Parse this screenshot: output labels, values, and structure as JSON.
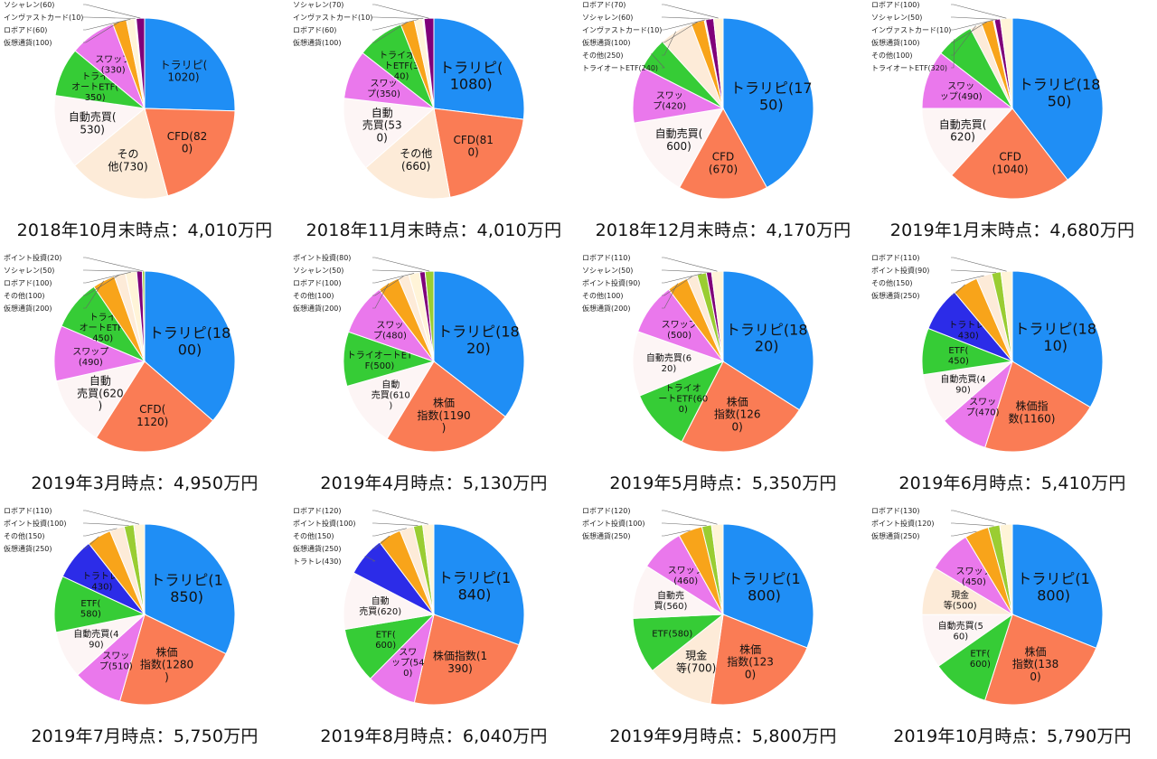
{
  "palette": {
    "トラリピ": "#1f8ef5",
    "CFD": "#fa7c55",
    "株価指数": "#fa7c55",
    "その他": "#fdebd8",
    "現金等": "#fdebd8",
    "自動売買": "#fdf5f5",
    "トライオートETF": "#36cc36",
    "ETF": "#36cc36",
    "スワップ": "#ea78ec",
    "トラトレ": "#2c2ce8",
    "仮想通貨": "#f8a41a",
    "ロボアド": "#fff4d8",
    "インヴァストカード": "#fdf8ee",
    "ソシャレン": "#80007a",
    "ポイント投資": "#9acd32"
  },
  "chart_data": [
    {
      "type": "pie",
      "title": "2018年10月末時点：4,010万円",
      "slices": [
        {
          "name": "トラリピ",
          "value": 1020,
          "label": "トラリピ(\n1020)",
          "kind": "inside"
        },
        {
          "name": "CFD",
          "value": 820,
          "label": "CFD(82\n0)",
          "kind": "inside"
        },
        {
          "name": "その他",
          "value": 730,
          "label": "その\n他(730)",
          "kind": "inside"
        },
        {
          "name": "自動売買",
          "value": 530,
          "label": "自動売買(\n530)",
          "kind": "inside"
        },
        {
          "name": "トライオートETF",
          "value": 350,
          "label": "トライ\nオートETF(\n350)",
          "kind": "inside"
        },
        {
          "name": "スワップ",
          "value": 330,
          "label": "スワップ\n(330)",
          "kind": "inside"
        },
        {
          "name": "仮想通貨",
          "value": 100,
          "label": "仮想通貨(100)",
          "kind": "outside"
        },
        {
          "name": "ロボアド",
          "value": 60,
          "label": "ロボアド(60)",
          "kind": "outside"
        },
        {
          "name": "インヴァストカード",
          "value": 10,
          "label": "インヴァストカード(10)",
          "kind": "outside"
        },
        {
          "name": "ソシャレン",
          "value": 60,
          "label": "ソシャレン(60)",
          "kind": "outside"
        }
      ]
    },
    {
      "type": "pie",
      "title": "2018年11月末時点：4,010万円",
      "slices": [
        {
          "name": "トラリピ",
          "value": 1080,
          "label": "トラリピ(\n1080)",
          "kind": "inside"
        },
        {
          "name": "CFD",
          "value": 810,
          "label": "CFD(81\n0)",
          "kind": "inside"
        },
        {
          "name": "その他",
          "value": 660,
          "label": "その他\n(660)",
          "kind": "inside"
        },
        {
          "name": "自動売買",
          "value": 530,
          "label": "自動\n売買(53\n0)",
          "kind": "inside"
        },
        {
          "name": "スワップ",
          "value": 350,
          "label": "スワッ\nプ(350)",
          "kind": "inside"
        },
        {
          "name": "トライオートETF",
          "value": 340,
          "label": "トライオー\nトETF(3\n40)",
          "kind": "inside"
        },
        {
          "name": "仮想通貨",
          "value": 100,
          "label": "仮想通貨(100)",
          "kind": "outside"
        },
        {
          "name": "ロボアド",
          "value": 60,
          "label": "ロボアド(60)",
          "kind": "outside"
        },
        {
          "name": "インヴァストカード",
          "value": 10,
          "label": "インヴァストカード(10)",
          "kind": "outside"
        },
        {
          "name": "ソシャレン",
          "value": 70,
          "label": "ソシャレン(70)",
          "kind": "outside"
        }
      ]
    },
    {
      "type": "pie",
      "title": "2018年12月末時点：4,170万円",
      "slices": [
        {
          "name": "トラリピ",
          "value": 1750,
          "label": "トラリピ(17\n50)",
          "kind": "inside"
        },
        {
          "name": "CFD",
          "value": 670,
          "label": "CFD\n(670)",
          "kind": "inside"
        },
        {
          "name": "自動売買",
          "value": 600,
          "label": "自動売買(\n600)",
          "kind": "inside"
        },
        {
          "name": "スワップ",
          "value": 420,
          "label": "スワッ\nプ(420)",
          "kind": "inside"
        },
        {
          "name": "トライオートETF",
          "value": 240,
          "label": "トライオートETF(240)",
          "kind": "outside"
        },
        {
          "name": "その他",
          "value": 250,
          "label": "その他(250)",
          "kind": "outside"
        },
        {
          "name": "仮想通貨",
          "value": 100,
          "label": "仮想通貨(100)",
          "kind": "outside"
        },
        {
          "name": "インヴァストカード",
          "value": 10,
          "label": "インヴァストカード(10)",
          "kind": "outside"
        },
        {
          "name": "ソシャレン",
          "value": 60,
          "label": "ソシャレン(60)",
          "kind": "outside"
        },
        {
          "name": "ロボアド",
          "value": 70,
          "label": "ロボアド(70)",
          "kind": "outside"
        }
      ]
    },
    {
      "type": "pie",
      "title": "2019年1月末時点：4,680万円",
      "slices": [
        {
          "name": "トラリピ",
          "value": 1850,
          "label": "トラリピ(18\n50)",
          "kind": "inside"
        },
        {
          "name": "CFD",
          "value": 1040,
          "label": "CFD\n(1040)",
          "kind": "inside"
        },
        {
          "name": "自動売買",
          "value": 620,
          "label": "自動売買(\n620)",
          "kind": "inside"
        },
        {
          "name": "スワップ",
          "value": 490,
          "label": "スワッ\nップ(490)",
          "kind": "inside"
        },
        {
          "name": "トライオートETF",
          "value": 320,
          "label": "トライオートETF(320)",
          "kind": "outside"
        },
        {
          "name": "その他",
          "value": 100,
          "label": "その他(100)",
          "kind": "outside"
        },
        {
          "name": "仮想通貨",
          "value": 100,
          "label": "仮想通貨(100)",
          "kind": "outside"
        },
        {
          "name": "インヴァストカード",
          "value": 10,
          "label": "インヴァストカード(10)",
          "kind": "outside"
        },
        {
          "name": "ソシャレン",
          "value": 50,
          "label": "ソシャレン(50)",
          "kind": "outside"
        },
        {
          "name": "ロボアド",
          "value": 100,
          "label": "ロボアド(100)",
          "kind": "outside"
        }
      ]
    },
    {
      "type": "pie",
      "title": "2019年3月時点：4,950万円",
      "slices": [
        {
          "name": "トラリピ",
          "value": 1800,
          "label": "トラリピ(18\n00)",
          "kind": "inside"
        },
        {
          "name": "CFD",
          "value": 1120,
          "label": "CFD(\n1120)",
          "kind": "inside"
        },
        {
          "name": "自動売買",
          "value": 620,
          "label": "自動\n売買(620\n)",
          "kind": "inside"
        },
        {
          "name": "スワップ",
          "value": 490,
          "label": "スワップ\n(490)",
          "kind": "inside"
        },
        {
          "name": "トライオートETF",
          "value": 450,
          "label": "トライ\nオートETF(\n450)",
          "kind": "inside"
        },
        {
          "name": "仮想通貨",
          "value": 200,
          "label": "仮想通貨(200)",
          "kind": "outside"
        },
        {
          "name": "その他",
          "value": 100,
          "label": "その他(100)",
          "kind": "outside"
        },
        {
          "name": "ロボアド",
          "value": 100,
          "label": "ロボアド(100)",
          "kind": "outside"
        },
        {
          "name": "ソシャレン",
          "value": 50,
          "label": "ソシャレン(50)",
          "kind": "outside"
        },
        {
          "name": "ポイント投資",
          "value": 20,
          "label": "ポイント投資(20)",
          "kind": "outside"
        }
      ]
    },
    {
      "type": "pie",
      "title": "2019年4月時点：5,130万円",
      "slices": [
        {
          "name": "トラリピ",
          "value": 1820,
          "label": "トラリピ(18\n20)",
          "kind": "inside"
        },
        {
          "name": "株価指数",
          "value": 1190,
          "label": "株価\n指数(1190\n)",
          "kind": "inside"
        },
        {
          "name": "自動売買",
          "value": 610,
          "label": "自動\n売買(610\n)",
          "kind": "inside"
        },
        {
          "name": "トライオートETF",
          "value": 500,
          "label": "トライオートET\nF(500)",
          "kind": "inside"
        },
        {
          "name": "スワップ",
          "value": 480,
          "label": "スワッ\nプ(480)",
          "kind": "inside"
        },
        {
          "name": "仮想通貨",
          "value": 200,
          "label": "仮想通貨(200)",
          "kind": "outside"
        },
        {
          "name": "その他",
          "value": 100,
          "label": "その他(100)",
          "kind": "outside"
        },
        {
          "name": "ロボアド",
          "value": 100,
          "label": "ロボアド(100)",
          "kind": "outside"
        },
        {
          "name": "ソシャレン",
          "value": 50,
          "label": "ソシャレン(50)",
          "kind": "outside"
        },
        {
          "name": "ポイント投資",
          "value": 80,
          "label": "ポイント投資(80)",
          "kind": "outside"
        }
      ]
    },
    {
      "type": "pie",
      "title": "2019年5月時点：5,350万円",
      "slices": [
        {
          "name": "トラリピ",
          "value": 1820,
          "label": "トラリピ(18\n20)",
          "kind": "inside"
        },
        {
          "name": "株価指数",
          "value": 1260,
          "label": "株価\n指数(126\n0)",
          "kind": "inside"
        },
        {
          "name": "トライオートETF",
          "value": 600,
          "label": "トライオ\nートETF(60\n0)",
          "kind": "inside"
        },
        {
          "name": "自動売買",
          "value": 620,
          "label": "自動売買(6\n20)",
          "kind": "inside"
        },
        {
          "name": "スワップ",
          "value": 500,
          "label": "スワップ\n(500)",
          "kind": "inside"
        },
        {
          "name": "仮想通貨",
          "value": 200,
          "label": "仮想通貨(200)",
          "kind": "outside"
        },
        {
          "name": "その他",
          "value": 100,
          "label": "その他(100)",
          "kind": "outside"
        },
        {
          "name": "ポイント投資",
          "value": 90,
          "label": "ポイント投資(90)",
          "kind": "outside"
        },
        {
          "name": "ソシャレン",
          "value": 50,
          "label": "ソシャレン(50)",
          "kind": "outside"
        },
        {
          "name": "ロボアド",
          "value": 110,
          "label": "ロボアド(110)",
          "kind": "outside"
        }
      ]
    },
    {
      "type": "pie",
      "title": "2019年6月時点：5,410万円",
      "slices": [
        {
          "name": "トラリピ",
          "value": 1810,
          "label": "トラリピ(18\n10)",
          "kind": "inside"
        },
        {
          "name": "株価指数",
          "value": 1160,
          "label": "株価指\n数(1160)",
          "kind": "inside"
        },
        {
          "name": "スワップ",
          "value": 470,
          "label": "スワッ\nプ(470)",
          "kind": "inside"
        },
        {
          "name": "自動売買",
          "value": 490,
          "label": "自動売買(4\n90)",
          "kind": "inside"
        },
        {
          "name": "ETF",
          "value": 450,
          "label": "ETF(\n450)",
          "kind": "inside"
        },
        {
          "name": "トラトレ",
          "value": 430,
          "label": "トラトレ(\n430)",
          "kind": "inside"
        },
        {
          "name": "仮想通貨",
          "value": 250,
          "label": "仮想通貨(250)",
          "kind": "outside"
        },
        {
          "name": "その他",
          "value": 150,
          "label": "その他(150)",
          "kind": "outside"
        },
        {
          "name": "ポイント投資",
          "value": 90,
          "label": "ポイント投資(90)",
          "kind": "outside"
        },
        {
          "name": "ロボアド",
          "value": 110,
          "label": "ロボアド(110)",
          "kind": "outside"
        }
      ]
    },
    {
      "type": "pie",
      "title": "2019年7月時点：5,750万円",
      "slices": [
        {
          "name": "トラリピ",
          "value": 1850,
          "label": "トラリピ(1\n850)",
          "kind": "inside"
        },
        {
          "name": "株価指数",
          "value": 1280,
          "label": "株価\n指数(1280\n)",
          "kind": "inside"
        },
        {
          "name": "スワップ",
          "value": 510,
          "label": "スワッ\nプ(510)",
          "kind": "inside"
        },
        {
          "name": "自動売買",
          "value": 490,
          "label": "自動売買(4\n90)",
          "kind": "inside"
        },
        {
          "name": "ETF",
          "value": 580,
          "label": "ETF(\n580)",
          "kind": "inside"
        },
        {
          "name": "トラトレ",
          "value": 430,
          "label": "トラトレ(\n430)",
          "kind": "inside"
        },
        {
          "name": "仮想通貨",
          "value": 250,
          "label": "仮想通貨(250)",
          "kind": "outside"
        },
        {
          "name": "その他",
          "value": 150,
          "label": "その他(150)",
          "kind": "outside"
        },
        {
          "name": "ポイント投資",
          "value": 100,
          "label": "ポイント投資(100)",
          "kind": "outside"
        },
        {
          "name": "ロボアド",
          "value": 110,
          "label": "ロボアド(110)",
          "kind": "outside"
        }
      ]
    },
    {
      "type": "pie",
      "title": "2019年8月時点：6,040万円",
      "slices": [
        {
          "name": "トラリピ",
          "value": 1840,
          "label": "トラリピ(1\n840)",
          "kind": "inside"
        },
        {
          "name": "株価指数",
          "value": 1390,
          "label": "株価指数(1\n390)",
          "kind": "inside"
        },
        {
          "name": "スワップ",
          "value": 540,
          "label": "スワ\nップ(54\n0)",
          "kind": "inside"
        },
        {
          "name": "ETF",
          "value": 600,
          "label": "ETF(\n600)",
          "kind": "inside"
        },
        {
          "name": "自動売買",
          "value": 620,
          "label": "自動\n売買(620)",
          "kind": "inside"
        },
        {
          "name": "トラトレ",
          "value": 430,
          "label": "トラトレ(430)",
          "kind": "outside"
        },
        {
          "name": "仮想通貨",
          "value": 250,
          "label": "仮想通貨(250)",
          "kind": "outside"
        },
        {
          "name": "その他",
          "value": 150,
          "label": "その他(150)",
          "kind": "outside"
        },
        {
          "name": "ポイント投資",
          "value": 100,
          "label": "ポイント投資(100)",
          "kind": "outside"
        },
        {
          "name": "ロボアド",
          "value": 120,
          "label": "ロボアド(120)",
          "kind": "outside"
        }
      ]
    },
    {
      "type": "pie",
      "title": "2019年9月時点：5,800万円",
      "slices": [
        {
          "name": "トラリピ",
          "value": 1800,
          "label": "トラリピ(1\n800)",
          "kind": "inside"
        },
        {
          "name": "株価指数",
          "value": 1230,
          "label": "株価\n指数(123\n0)",
          "kind": "inside"
        },
        {
          "name": "現金等",
          "value": 700,
          "label": "現金\n等(700)",
          "kind": "inside"
        },
        {
          "name": "ETF",
          "value": 580,
          "label": "ETF(580)",
          "kind": "inside"
        },
        {
          "name": "自動売買",
          "value": 560,
          "label": "自動売\n買(560)",
          "kind": "inside"
        },
        {
          "name": "スワップ",
          "value": 460,
          "label": "スワップ\n(460)",
          "kind": "inside"
        },
        {
          "name": "仮想通貨",
          "value": 250,
          "label": "仮想通貨(250)",
          "kind": "outside"
        },
        {
          "name": "ポイント投資",
          "value": 100,
          "label": "ポイント投資(100)",
          "kind": "outside"
        },
        {
          "name": "ロボアド",
          "value": 120,
          "label": "ロボアド(120)",
          "kind": "outside"
        }
      ]
    },
    {
      "type": "pie",
      "title": "2019年10月時点：5,790万円",
      "slices": [
        {
          "name": "トラリピ",
          "value": 1800,
          "label": "トラリピ(1\n800)",
          "kind": "inside"
        },
        {
          "name": "株価指数",
          "value": 1380,
          "label": "株価\n指数(138\n0)",
          "kind": "inside"
        },
        {
          "name": "ETF",
          "value": 600,
          "label": "ETF(\n600)",
          "kind": "inside"
        },
        {
          "name": "自動売買",
          "value": 560,
          "label": "自動売買(5\n60)",
          "kind": "inside"
        },
        {
          "name": "現金等",
          "value": 500,
          "label": "現金\n等(500)",
          "kind": "inside"
        },
        {
          "name": "スワップ",
          "value": 450,
          "label": "スワップ\n(450)",
          "kind": "inside"
        },
        {
          "name": "仮想通貨",
          "value": 250,
          "label": "仮想通貨(250)",
          "kind": "outside"
        },
        {
          "name": "ポイント投資",
          "value": 120,
          "label": "ポイント投資(120)",
          "kind": "outside"
        },
        {
          "name": "ロボアド",
          "value": 130,
          "label": "ロボアド(130)",
          "kind": "outside"
        }
      ]
    }
  ]
}
